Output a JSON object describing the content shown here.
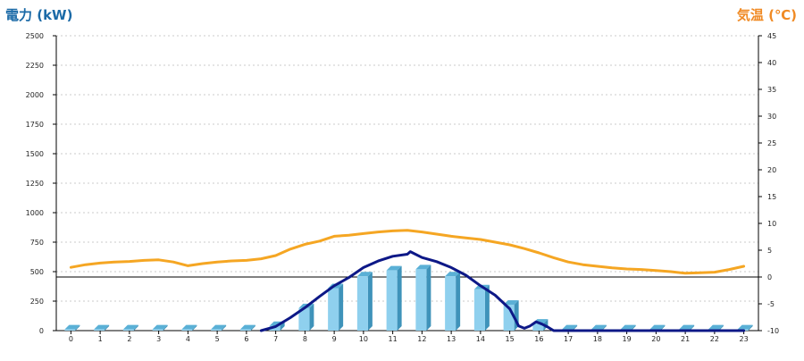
{
  "titles": {
    "left": "電力 (kW)",
    "right": "気温 (℃)"
  },
  "colors": {
    "bar_face": "#8fd0ee",
    "bar_side": "#3f93ba",
    "bar_top": "#5ab0d6",
    "power_line": "#0d1887",
    "temp_line": "#f5a623",
    "left_title": "#1b6aa7",
    "right_title": "#f08a24",
    "grid": "#bbbbbb"
  },
  "chart_data": {
    "type": "bar",
    "title": "",
    "xlabel": "",
    "x_ticks": [
      "0",
      "1",
      "2",
      "3",
      "4",
      "5",
      "6",
      "7",
      "8",
      "9",
      "10",
      "11",
      "12",
      "13",
      "14",
      "15",
      "16",
      "17",
      "18",
      "19",
      "20",
      "21",
      "22",
      "23"
    ],
    "y_left": {
      "label": "電力 (kW)",
      "range": [
        0,
        2500
      ],
      "ticks": [
        0,
        250,
        500,
        750,
        1000,
        1250,
        1500,
        1750,
        2000,
        2250,
        2500
      ]
    },
    "y_right": {
      "label": "気温 (℃)",
      "range": [
        -10,
        45
      ],
      "ticks": [
        -10,
        -5,
        0,
        5,
        10,
        15,
        20,
        25,
        30,
        35,
        40,
        45
      ]
    },
    "grid": true,
    "zero_reference_line_y_right": 0,
    "bars": {
      "axis": "left",
      "categories": [
        "0",
        "1",
        "2",
        "3",
        "4",
        "5",
        "6",
        "7",
        "8",
        "9",
        "10",
        "11",
        "12",
        "13",
        "14",
        "15",
        "16",
        "17",
        "18",
        "19",
        "20",
        "21",
        "22",
        "23"
      ],
      "values": [
        10,
        10,
        10,
        10,
        10,
        10,
        10,
        40,
        190,
        360,
        460,
        510,
        520,
        460,
        350,
        220,
        60,
        10,
        10,
        10,
        10,
        10,
        10,
        10
      ]
    },
    "series": [
      {
        "type": "line",
        "axis": "left",
        "x": [
          6.5,
          7,
          7.5,
          8,
          8.5,
          9,
          9.5,
          10,
          10.5,
          11,
          11.5,
          11.6,
          12,
          12.5,
          13,
          13.5,
          14,
          14.5,
          15,
          15.2,
          15.3,
          15.5,
          15.7,
          15.9,
          16.1,
          16.3,
          16.5,
          17,
          23
        ],
        "y": [
          0,
          35,
          110,
          195,
          290,
          380,
          450,
          535,
          590,
          630,
          648,
          670,
          620,
          585,
          535,
          470,
          380,
          300,
          185,
          90,
          40,
          20,
          40,
          75,
          55,
          30,
          0,
          0,
          0
        ]
      },
      {
        "type": "line",
        "axis": "right",
        "x": [
          0,
          0.5,
          1,
          1.5,
          2,
          2.5,
          3,
          3.5,
          4,
          4.5,
          5,
          5.5,
          6,
          6.5,
          7,
          7.5,
          8,
          8.5,
          9,
          9.5,
          10,
          10.5,
          11,
          11.5,
          12,
          12.5,
          13,
          13.5,
          14,
          14.5,
          15,
          15.5,
          16,
          16.5,
          17,
          17.5,
          18,
          18.5,
          19,
          19.5,
          20,
          20.5,
          21,
          21.5,
          22,
          22.5,
          23
        ],
        "y": [
          1.8,
          2.3,
          2.6,
          2.8,
          2.9,
          3.1,
          3.2,
          2.8,
          2.1,
          2.5,
          2.8,
          3.0,
          3.1,
          3.4,
          4.0,
          5.2,
          6.1,
          6.7,
          7.6,
          7.8,
          8.1,
          8.4,
          8.6,
          8.7,
          8.4,
          8.0,
          7.6,
          7.3,
          7.0,
          6.5,
          6.0,
          5.3,
          4.5,
          3.6,
          2.8,
          2.3,
          2.0,
          1.7,
          1.5,
          1.4,
          1.2,
          1.0,
          0.7,
          0.8,
          0.9,
          1.4,
          2.0
        ]
      }
    ]
  }
}
